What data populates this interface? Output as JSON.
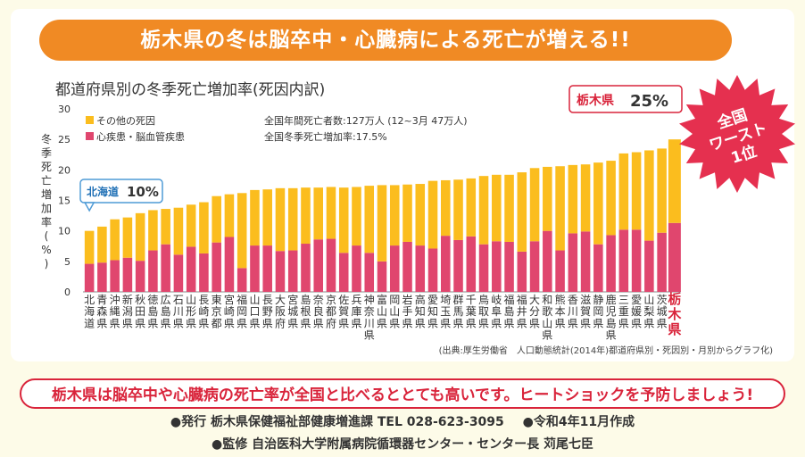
{
  "banner": {
    "title": "栃木県の冬は脳卒中・心臓病による死亡が増える!!"
  },
  "chart_data": {
    "type": "bar",
    "title": "都道府県別の冬季死亡増加率(死因内訳)",
    "ylabel": "冬季死亡増加率(%)",
    "ylim": [
      0,
      30
    ],
    "yticks": [
      0,
      5,
      10,
      15,
      20,
      25,
      30
    ],
    "categories": [
      "北海道",
      "青森県",
      "沖縄県",
      "新潟県",
      "秋田県",
      "徳島県",
      "広島県",
      "石川県",
      "山形県",
      "長崎県",
      "東京都",
      "宮崎県",
      "福岡県",
      "山口県",
      "長野県",
      "大阪府",
      "宮城県",
      "島根県",
      "奈良県",
      "京都府",
      "佐賀県",
      "兵庫県",
      "神奈川県",
      "富山県",
      "岡山県",
      "岩手県",
      "高知県",
      "愛知県",
      "埼玉県",
      "群馬県",
      "千葉県",
      "鳥取県",
      "岐阜県",
      "福島県",
      "福井県",
      "大分県",
      "和歌山県",
      "熊本県",
      "香川県",
      "滋賀県",
      "静岡県",
      "鹿児島県",
      "三重県",
      "愛媛県",
      "山梨県",
      "茨城県",
      "栃木県"
    ],
    "series": [
      {
        "name": "心疾患・脳血管疾患",
        "color": "#e0466e",
        "values": [
          4.6,
          4.8,
          5.2,
          5.6,
          5.1,
          6.8,
          7.8,
          6.1,
          7.4,
          6.3,
          8.1,
          9.0,
          3.9,
          7.6,
          7.6,
          6.7,
          6.8,
          7.9,
          8.6,
          8.7,
          6.4,
          7.6,
          6.4,
          5.0,
          7.6,
          8.2,
          7.6,
          7.1,
          9.2,
          8.5,
          9.1,
          7.8,
          8.3,
          8.2,
          6.6,
          8.3,
          10.0,
          6.8,
          9.6,
          9.9,
          7.8,
          9.3,
          10.2,
          10.2,
          8.4,
          9.7,
          11.3
        ]
      },
      {
        "name": "その他の死因",
        "color": "#fbbd1e",
        "values": [
          5.4,
          5.9,
          6.7,
          6.6,
          7.8,
          6.6,
          5.8,
          7.7,
          6.9,
          8.4,
          7.6,
          7.0,
          12.3,
          9.1,
          9.2,
          10.3,
          10.2,
          9.2,
          8.5,
          8.5,
          10.7,
          9.6,
          11.0,
          12.5,
          9.9,
          9.4,
          10.1,
          11.1,
          9.1,
          9.9,
          9.5,
          11.2,
          10.9,
          11.0,
          13.0,
          12.0,
          10.5,
          13.8,
          11.2,
          11.0,
          13.4,
          12.2,
          12.5,
          12.7,
          14.8,
          13.8,
          13.7
        ]
      }
    ],
    "legend": [
      {
        "label": "その他の死因",
        "color": "#fbbd1e"
      },
      {
        "label": "心疾患・脳血管疾患",
        "color": "#e0466e"
      }
    ],
    "notes": [
      "全国年間死亡者数:127万人 (12~3月 47万人)",
      "全国冬季死亡増加率:17.5%"
    ],
    "callout_left": {
      "name": "北海道",
      "value": "10%"
    },
    "callout_right": {
      "name": "栃木県",
      "value": "25%"
    },
    "highlight_label": "栃木県",
    "source": "(出典:厚生労働省　人口動態統計(2014年)都道府県別・死因別・月別からグラフ化)"
  },
  "badge": {
    "lines": [
      "全国",
      "ワースト",
      "1位"
    ]
  },
  "warning": "栃木県は脳卒中や心臓病の死亡率が全国と比べるととても高いです。ヒートショックを予防しましょう!",
  "footer": {
    "publisher": "●発行 栃木県保健福祉部健康増進課 TEL 028-623-3095",
    "date": "●令和4年11月作成",
    "supervisor": "●監修 自治医科大学附属病院循環器センター・センター長 苅尾七臣"
  }
}
